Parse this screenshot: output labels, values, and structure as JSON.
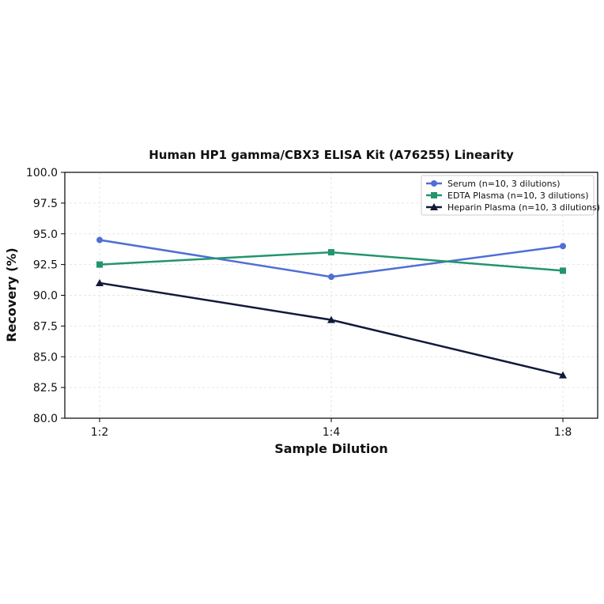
{
  "chart_data": {
    "type": "line",
    "title": "Human HP1 gamma/CBX3 ELISA Kit (A76255) Linearity",
    "xlabel": "Sample Dilution",
    "ylabel": "Recovery (%)",
    "categories": [
      "1:2",
      "1:4",
      "1:8"
    ],
    "ylim": [
      80.0,
      100.0
    ],
    "yticks": [
      "80.0",
      "82.5",
      "85.0",
      "87.5",
      "90.0",
      "92.5",
      "95.0",
      "97.5",
      "100.0"
    ],
    "grid": true,
    "legend_position": "top-right",
    "series": [
      {
        "name": "Serum (n=10, 3 dilutions)",
        "values": [
          94.5,
          91.5,
          94.0
        ],
        "color": "#4f6fd4",
        "marker": "circle"
      },
      {
        "name": "EDTA Plasma (n=10, 3 dilutions)",
        "values": [
          92.5,
          93.5,
          92.0
        ],
        "color": "#22956e",
        "marker": "square"
      },
      {
        "name": "Heparin Plasma (n=10, 3 dilutions)",
        "values": [
          91.0,
          88.0,
          83.5
        ],
        "color": "#121a3a",
        "marker": "triangle"
      }
    ]
  }
}
